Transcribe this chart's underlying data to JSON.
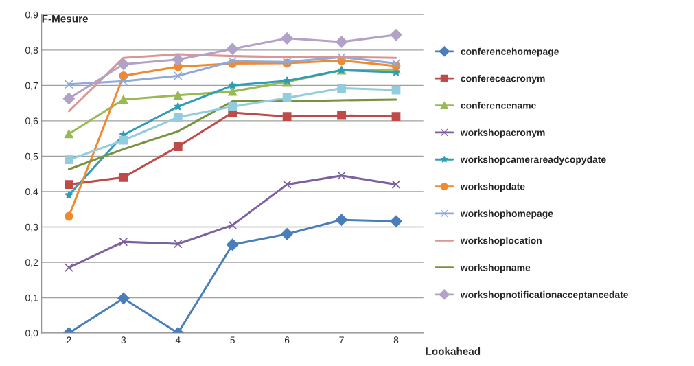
{
  "chart_data": {
    "type": "line",
    "xlabel": "Lookahead",
    "ylabel": "F-Mesure",
    "categories": [
      "2",
      "3",
      "4",
      "5",
      "6",
      "7",
      "8"
    ],
    "ylim": [
      0,
      0.9
    ],
    "yticks": [
      {
        "value": 0,
        "label": "0,0"
      },
      {
        "value": 0.1,
        "label": "0,1"
      },
      {
        "value": 0.2,
        "label": "0,2"
      },
      {
        "value": 0.3,
        "label": "0,3"
      },
      {
        "value": 0.4,
        "label": "0,4"
      },
      {
        "value": 0.5,
        "label": "0,5"
      },
      {
        "value": 0.6,
        "label": "0,6"
      },
      {
        "value": 0.7,
        "label": "0,7"
      },
      {
        "value": 0.8,
        "label": "0,8"
      },
      {
        "value": 0.9,
        "label": "0,9"
      }
    ],
    "grid": "y",
    "legend": "right",
    "series": [
      {
        "name": "conferencehomepage",
        "color": "#4a7ebb",
        "marker": "diamond",
        "values": [
          0,
          0.098,
          0,
          0.25,
          0.28,
          0.32,
          0.316
        ]
      },
      {
        "name": "confereceacronym",
        "color": "#be4b48",
        "marker": "square",
        "values": [
          0.42,
          0.44,
          0.527,
          0.623,
          0.612,
          0.615,
          0.612
        ]
      },
      {
        "name": "conferencename",
        "color": "#98b954",
        "marker": "triangle",
        "values": [
          0.563,
          0.66,
          0.672,
          0.683,
          0.71,
          0.743,
          0.745
        ]
      },
      {
        "name": "workshopacronym",
        "color": "#7d60a0",
        "marker": "cross",
        "values": [
          0.185,
          0.258,
          0.252,
          0.305,
          0.42,
          0.445,
          0.42
        ]
      },
      {
        "name": "workshopcamerareadycopydate",
        "color": "#2f9db5",
        "marker": "star",
        "values": [
          0.39,
          0.56,
          0.64,
          0.7,
          0.713,
          0.743,
          0.737
        ]
      },
      {
        "name": "workshopdate",
        "color": "#f08a30",
        "marker": "circle",
        "values": [
          0.33,
          0.727,
          0.753,
          0.762,
          0.763,
          0.77,
          0.755
        ]
      },
      {
        "name": "workshophomepage",
        "color": "#8ea9db",
        "marker": "cross",
        "values": [
          0.703,
          0.712,
          0.727,
          0.768,
          0.766,
          0.78,
          0.762
        ]
      },
      {
        "name": "workshoplocation",
        "color": "#d99694",
        "marker": "none",
        "values": [
          0.627,
          0.778,
          0.788,
          0.783,
          0.78,
          0.78,
          0.778
        ]
      },
      {
        "name": "workshopname",
        "color": "#77933c",
        "marker": "none",
        "values": [
          0.463,
          0.52,
          0.57,
          0.655,
          0.655,
          0.658,
          0.66
        ]
      },
      {
        "name": "workshopnotificationacceptancedate",
        "color": "#b3a2c7",
        "marker": "diamond",
        "values": [
          0.663,
          0.76,
          0.773,
          0.803,
          0.833,
          0.823,
          0.843
        ]
      },
      {
        "color": "#93cddd",
        "marker": "square",
        "values": [
          0.49,
          0.545,
          0.61,
          0.64,
          0.665,
          0.692,
          0.687
        ]
      }
    ]
  }
}
